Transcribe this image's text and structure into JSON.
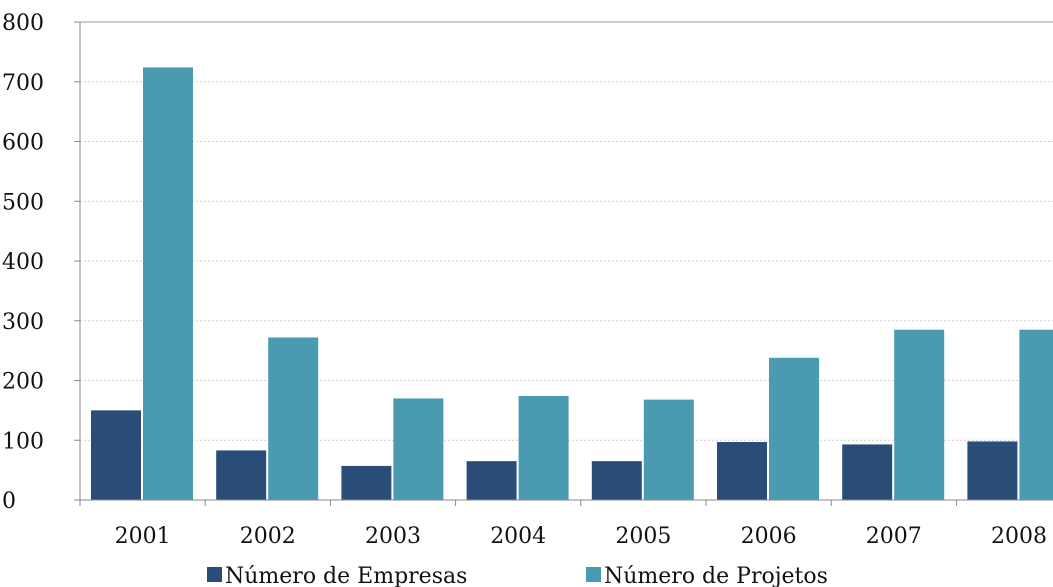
{
  "chart_data": {
    "type": "bar",
    "categories": [
      "2001",
      "2002",
      "2003",
      "2004",
      "2005",
      "2006",
      "2007",
      "2008"
    ],
    "series": [
      {
        "name": "Número de Empresas",
        "color": "#2a4d78",
        "values": [
          150,
          83,
          57,
          65,
          65,
          97,
          93,
          98
        ]
      },
      {
        "name": "Número de Projetos",
        "color": "#4a9bb2",
        "values": [
          724,
          272,
          170,
          174,
          168,
          238,
          285,
          285
        ]
      }
    ],
    "yticks": [
      "0",
      "100",
      "200",
      "300",
      "400",
      "500",
      "600",
      "700",
      "800"
    ],
    "ylim": [
      0,
      800
    ],
    "grid": true,
    "legend_position": "bottom"
  }
}
